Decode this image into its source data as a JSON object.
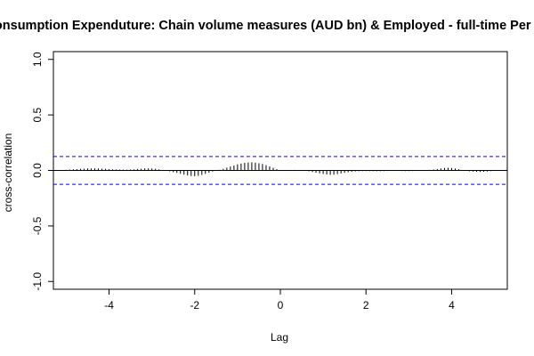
{
  "chart_data": {
    "type": "bar",
    "title": "Consumption Expenduture: Chain volume measures (AUD bn) & Employed - full-time Per",
    "xlabel": "Lag",
    "ylabel": "cross-correlation",
    "xlim": [
      -5.3,
      5.3
    ],
    "ylim": [
      -1.07,
      1.07
    ],
    "x_ticks": [
      -4,
      -2,
      0,
      2,
      4
    ],
    "x_tick_labels": [
      "-4",
      "-2",
      "0",
      "2",
      "4"
    ],
    "y_ticks": [
      -1.0,
      -0.5,
      0.0,
      0.5,
      1.0
    ],
    "y_tick_labels": [
      "-1.0",
      "-0.5",
      "0.0",
      "0.5",
      "1.0"
    ],
    "confidence_bound": 0.125,
    "grid": false,
    "colors": {
      "bars": "#000000",
      "bounds": "#0000ff",
      "zero_line": "#000000"
    },
    "lag_start": -5.0,
    "lag_step": 0.08333,
    "values": [
      0.005,
      0.008,
      0.01,
      0.012,
      0.014,
      0.016,
      0.017,
      0.018,
      0.018,
      0.017,
      0.016,
      0.014,
      0.012,
      0.01,
      0.009,
      0.008,
      0.007,
      0.007,
      0.008,
      0.01,
      0.013,
      0.016,
      0.018,
      0.019,
      0.018,
      0.015,
      0.01,
      0.004,
      -0.002,
      -0.008,
      -0.015,
      -0.022,
      -0.03,
      -0.038,
      -0.045,
      -0.05,
      -0.052,
      -0.048,
      -0.04,
      -0.03,
      -0.02,
      -0.01,
      -0.002,
      0.006,
      0.015,
      0.025,
      0.035,
      0.045,
      0.055,
      0.062,
      0.068,
      0.072,
      0.073,
      0.07,
      0.065,
      0.058,
      0.048,
      0.036,
      0.024,
      0.012,
      0.003,
      0.002,
      0.003,
      0.004,
      0.005,
      0.003,
      0.001,
      -0.003,
      -0.008,
      -0.014,
      -0.02,
      -0.026,
      -0.032,
      -0.037,
      -0.04,
      -0.038,
      -0.033,
      -0.027,
      -0.021,
      -0.016,
      -0.012,
      -0.009,
      -0.007,
      -0.006,
      -0.006,
      -0.006,
      -0.007,
      -0.007,
      -0.007,
      -0.006,
      -0.005,
      -0.004,
      -0.004,
      -0.004,
      -0.005,
      -0.006,
      -0.006,
      -0.005,
      -0.004,
      -0.003,
      -0.001,
      0.001,
      0.004,
      0.008,
      0.013,
      0.018,
      0.022,
      0.024,
      0.022,
      0.017,
      0.011,
      0.004,
      -0.002,
      -0.007,
      -0.01,
      -0.012,
      -0.013,
      -0.012,
      -0.01,
      -0.006,
      -0.003
    ]
  }
}
